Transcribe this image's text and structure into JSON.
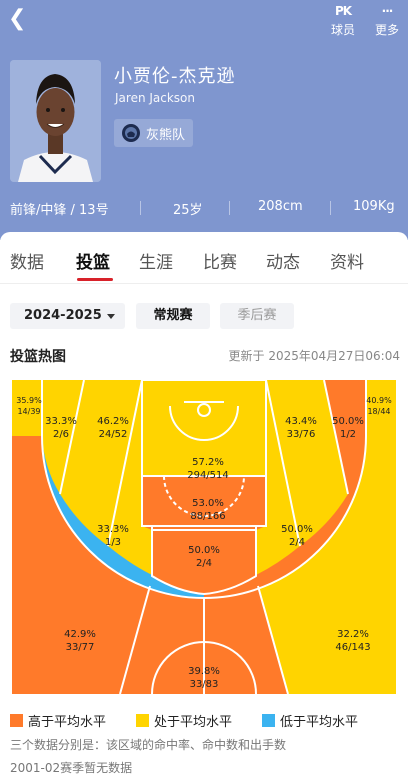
{
  "header": {
    "pk_glyph": "PK",
    "pk_label": "球员",
    "more_glyph": "···",
    "more_label": "更多",
    "name_cn": "小贾伦-杰克逊",
    "name_en": "Jaren Jackson",
    "team": "灰熊队",
    "position": "前锋/中锋 / 13号",
    "age": "25岁",
    "height": "208cm",
    "weight": "109Kg"
  },
  "tabs": [
    "数据",
    "投篮",
    "生涯",
    "比赛",
    "动态",
    "资料"
  ],
  "active_tab": "投篮",
  "filters": {
    "season": "2024-2025",
    "regular": "常规赛",
    "playoffs": "季后赛"
  },
  "section": {
    "title": "投篮热图",
    "updated": "更新于 2025年04月27日06:04"
  },
  "colors": {
    "above": "#ff7a2a",
    "average": "#ffd400",
    "below": "#3bb3f0",
    "header_bg": "#7f96cf",
    "accent": "#d8222a"
  },
  "zones": {
    "corner_left": {
      "pct": "35.9%",
      "made_att": "14/39",
      "level": "average"
    },
    "corner_right": {
      "pct": "40.9%",
      "made_att": "18/44",
      "level": "average"
    },
    "mid_left_base": {
      "pct": "33.3%",
      "made_att": "2/6",
      "level": "average"
    },
    "mid_left_top": {
      "pct": "46.2%",
      "made_att": "24/52",
      "level": "average"
    },
    "paint_top": {
      "pct": "57.2%",
      "made_att": "294/514",
      "level": "average"
    },
    "mid_right_top": {
      "pct": "43.4%",
      "made_att": "33/76",
      "level": "average"
    },
    "mid_right_base": {
      "pct": "50.0%",
      "made_att": "1/2",
      "level": "above"
    },
    "paint_mid": {
      "pct": "53.0%",
      "made_att": "88/166",
      "level": "above"
    },
    "mid_left_wing": {
      "pct": "33.3%",
      "made_att": "1/3",
      "level": "below"
    },
    "mid_right_wing": {
      "pct": "50.0%",
      "made_att": "2/4",
      "level": "above"
    },
    "mid_top": {
      "pct": "50.0%",
      "made_att": "2/4",
      "level": "above"
    },
    "three_left": {
      "pct": "42.9%",
      "made_att": "33/77",
      "level": "above"
    },
    "three_right": {
      "pct": "32.2%",
      "made_att": "46/143",
      "level": "average"
    },
    "three_top": {
      "pct": "39.8%",
      "made_att": "33/83",
      "level": "above"
    }
  },
  "legend": {
    "above": "高于平均水平",
    "average": "处于平均水平",
    "below": "低于平均水平"
  },
  "notes": {
    "explain": "三个数据分别是：该区域的命中率、命中数和出手数",
    "no_data": "2001-02赛季暂无数据"
  }
}
